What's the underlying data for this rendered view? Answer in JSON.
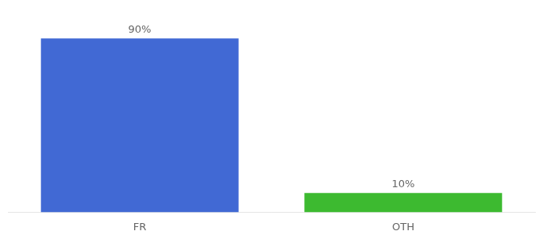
{
  "chart_data": {
    "type": "bar",
    "categories": [
      "FR",
      "OTH"
    ],
    "values": [
      90,
      10
    ],
    "value_labels": [
      "90%",
      "10%"
    ],
    "colors": [
      "#4169d4",
      "#3dba30"
    ],
    "ylim": [
      0,
      100
    ],
    "grid": false,
    "data_labels": true,
    "tick_labels": "x"
  }
}
